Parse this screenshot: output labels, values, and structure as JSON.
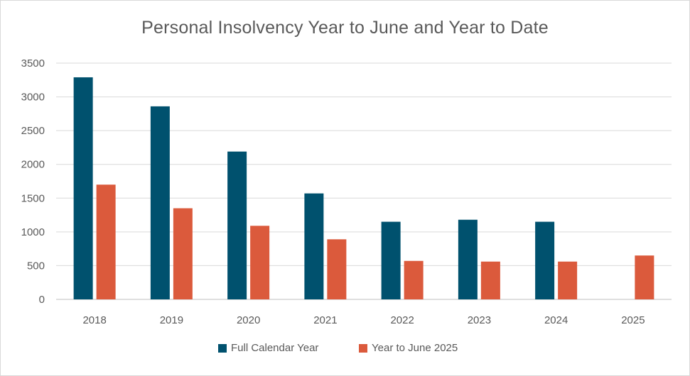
{
  "chart_data": {
    "type": "bar",
    "title": "Personal Insolvency Year to June and Year to Date",
    "xlabel": "",
    "ylabel": "",
    "categories": [
      "2018",
      "2019",
      "2020",
      "2021",
      "2022",
      "2023",
      "2024",
      "2025"
    ],
    "series": [
      {
        "name": "Full Calendar Year",
        "color": "#00516e",
        "values": [
          3290,
          2860,
          2190,
          1570,
          1150,
          1180,
          1150,
          null
        ]
      },
      {
        "name": "Year to June 2025",
        "color": "#db5a3c",
        "values": [
          1700,
          1350,
          1090,
          890,
          570,
          560,
          560,
          650
        ]
      }
    ],
    "ylim": [
      0,
      3500
    ],
    "yticks": [
      "0",
      "500",
      "1000",
      "1500",
      "2000",
      "2500",
      "3000",
      "3500"
    ],
    "grid": true,
    "legend": "bottom"
  }
}
